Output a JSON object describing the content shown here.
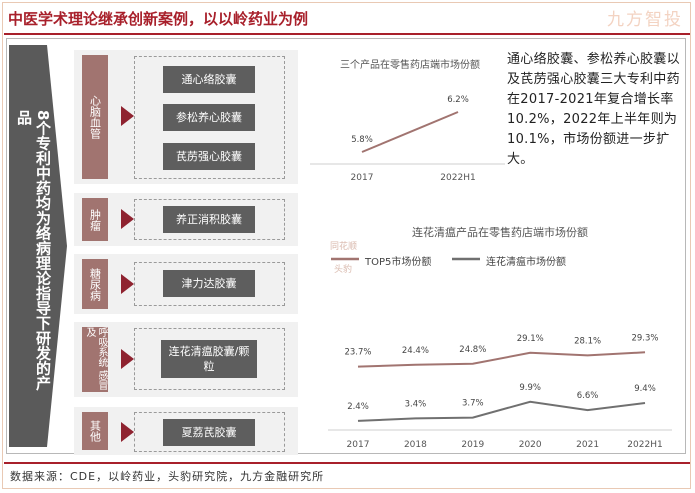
{
  "title": "中医学术理论继承创新案例，以以岭药业为例",
  "watermark": "九方智投",
  "side_arrow_text": "8个专利中药均为络病理论指导下研发的产品",
  "categories": [
    {
      "label": "心脑血管",
      "drugs": [
        "通心络胶囊",
        "参松养心胶囊",
        "芪苈强心胶囊"
      ]
    },
    {
      "label": "肿瘤",
      "drugs": [
        "养正消积胶囊"
      ]
    },
    {
      "label": "糖尿病",
      "drugs": [
        "津力达胶囊"
      ]
    },
    {
      "label": "呼吸系统 感冒及",
      "drugs": [
        "连花清瘟胶囊/颗粒"
      ]
    },
    {
      "label": "其他",
      "drugs": [
        "夏荔芪胶囊"
      ]
    }
  ],
  "paragraph": "通心络胶囊、参松养心胶囊以及芪苈强心胶囊三大专利中药在2017-2021年复合增长率10.2%，2022年上半年则为10.1%，市场份额进一步扩大。",
  "faint_source": {
    "line1": "同花顺",
    "line2": "头豹"
  },
  "footer": "数据来源：CDE，以岭药业，头豹研究院，九方金融研究所",
  "colors": {
    "brand": "#a8202b",
    "top5": "#a17470",
    "lianhua": "#707070",
    "small_line": "#a17470"
  },
  "chart_data": [
    {
      "type": "line",
      "title": "三个产品在零售药店端市场份额",
      "x": [
        "2017",
        "2022H1"
      ],
      "series": [
        {
          "name": "",
          "values": [
            5.8,
            6.2
          ],
          "labels": [
            "5.8%",
            "6.2%"
          ]
        }
      ]
    },
    {
      "type": "line",
      "title": "连花清瘟产品在零售药店端市场份额",
      "x": [
        "2017",
        "2018",
        "2019",
        "2020",
        "2021",
        "2022H1"
      ],
      "legend_position": "top-left",
      "series": [
        {
          "name": "TOP5市场份额",
          "values": [
            23.7,
            24.4,
            24.8,
            29.1,
            28.1,
            29.3
          ],
          "labels": [
            "23.7%",
            "24.4%",
            "24.8%",
            "29.1%",
            "28.1%",
            "29.3%"
          ]
        },
        {
          "name": "连花清瘟市场份额",
          "values": [
            2.4,
            3.4,
            3.7,
            9.9,
            6.6,
            9.4
          ],
          "labels": [
            "2.4%",
            "3.4%",
            "3.7%",
            "9.9%",
            "6.6%",
            "9.4%"
          ]
        }
      ]
    }
  ]
}
